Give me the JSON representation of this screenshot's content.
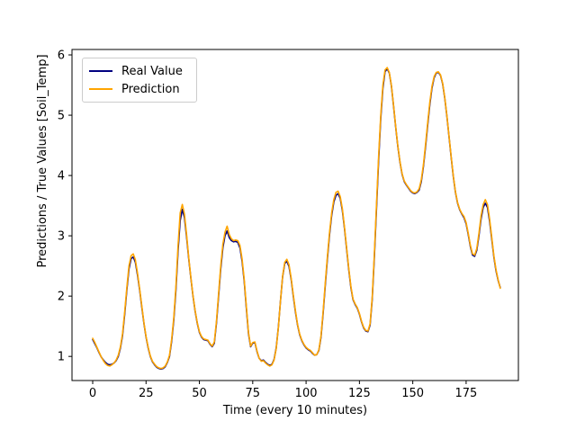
{
  "chart_data": {
    "type": "line",
    "title": "",
    "xlabel": "Time (every 10 minutes)",
    "ylabel": "Predictions / True Values [Soil_Temp]",
    "x_start": 0,
    "x_step": 1,
    "xticks": [
      0,
      25,
      50,
      75,
      100,
      125,
      150,
      175
    ],
    "yticks": [
      1,
      2,
      3,
      4,
      5,
      6
    ],
    "xlim": [
      -9.7,
      199.5
    ],
    "ylim": [
      0.6,
      6.09
    ],
    "grid": false,
    "background": "#ffffff",
    "axes_color": "#000000",
    "legend": {
      "position": "upper left"
    },
    "series": [
      {
        "name": "Real Value",
        "color": "#000080",
        "line_width": 1.6,
        "values": [
          1.28,
          1.21,
          1.14,
          1.06,
          0.99,
          0.94,
          0.9,
          0.87,
          0.86,
          0.87,
          0.89,
          0.93,
          1.0,
          1.14,
          1.35,
          1.7,
          2.1,
          2.45,
          2.62,
          2.65,
          2.56,
          2.35,
          2.1,
          1.82,
          1.55,
          1.32,
          1.14,
          1.0,
          0.91,
          0.86,
          0.82,
          0.8,
          0.79,
          0.8,
          0.83,
          0.9,
          1.0,
          1.25,
          1.6,
          2.1,
          2.75,
          3.25,
          3.44,
          3.3,
          2.98,
          2.62,
          2.3,
          2.0,
          1.75,
          1.55,
          1.4,
          1.32,
          1.28,
          1.27,
          1.26,
          1.2,
          1.16,
          1.22,
          1.55,
          2.0,
          2.45,
          2.8,
          3.0,
          3.08,
          2.97,
          2.92,
          2.9,
          2.91,
          2.89,
          2.8,
          2.58,
          2.25,
          1.8,
          1.38,
          1.16,
          1.22,
          1.23,
          1.08,
          0.97,
          0.93,
          0.94,
          0.9,
          0.87,
          0.85,
          0.87,
          0.95,
          1.14,
          1.48,
          1.92,
          2.32,
          2.54,
          2.58,
          2.49,
          2.28,
          2.0,
          1.74,
          1.52,
          1.36,
          1.26,
          1.19,
          1.14,
          1.11,
          1.09,
          1.05,
          1.02,
          1.03,
          1.1,
          1.32,
          1.72,
          2.18,
          2.62,
          3.02,
          3.34,
          3.56,
          3.67,
          3.7,
          3.62,
          3.42,
          3.12,
          2.78,
          2.44,
          2.14,
          1.94,
          1.86,
          1.8,
          1.7,
          1.57,
          1.47,
          1.42,
          1.41,
          1.52,
          1.95,
          2.65,
          3.45,
          4.25,
          4.95,
          5.45,
          5.72,
          5.77,
          5.7,
          5.48,
          5.15,
          4.8,
          4.48,
          4.22,
          4.02,
          3.9,
          3.84,
          3.79,
          3.74,
          3.71,
          3.7,
          3.72,
          3.76,
          3.9,
          4.15,
          4.48,
          4.84,
          5.18,
          5.45,
          5.62,
          5.7,
          5.71,
          5.66,
          5.52,
          5.28,
          4.98,
          4.64,
          4.3,
          3.98,
          3.72,
          3.54,
          3.43,
          3.36,
          3.3,
          3.2,
          3.02,
          2.82,
          2.68,
          2.66,
          2.76,
          3.0,
          3.28,
          3.47,
          3.54,
          3.47,
          3.24,
          2.95,
          2.65,
          2.42,
          2.26,
          2.14
        ]
      },
      {
        "name": "Prediction",
        "color": "#FFA500",
        "line_width": 1.6,
        "values": [
          1.3,
          1.23,
          1.15,
          1.07,
          0.99,
          0.93,
          0.88,
          0.85,
          0.84,
          0.86,
          0.89,
          0.94,
          1.02,
          1.16,
          1.38,
          1.74,
          2.14,
          2.5,
          2.67,
          2.7,
          2.6,
          2.38,
          2.12,
          1.84,
          1.56,
          1.33,
          1.15,
          1.01,
          0.92,
          0.87,
          0.83,
          0.81,
          0.8,
          0.81,
          0.84,
          0.91,
          1.02,
          1.28,
          1.64,
          2.16,
          2.84,
          3.38,
          3.52,
          3.36,
          3.02,
          2.64,
          2.31,
          2.01,
          1.76,
          1.56,
          1.41,
          1.33,
          1.29,
          1.28,
          1.27,
          1.21,
          1.17,
          1.24,
          1.58,
          2.04,
          2.5,
          2.86,
          3.06,
          3.16,
          3.02,
          2.95,
          2.92,
          2.93,
          2.92,
          2.84,
          2.62,
          2.28,
          1.83,
          1.4,
          1.17,
          1.23,
          1.24,
          1.09,
          0.97,
          0.92,
          0.93,
          0.89,
          0.86,
          0.84,
          0.86,
          0.94,
          1.13,
          1.47,
          1.92,
          2.33,
          2.56,
          2.61,
          2.52,
          2.3,
          2.02,
          1.76,
          1.53,
          1.37,
          1.27,
          1.2,
          1.15,
          1.12,
          1.1,
          1.06,
          1.02,
          1.03,
          1.11,
          1.34,
          1.75,
          2.22,
          2.66,
          3.06,
          3.38,
          3.6,
          3.72,
          3.74,
          3.65,
          3.45,
          3.14,
          2.8,
          2.46,
          2.16,
          1.95,
          1.87,
          1.81,
          1.71,
          1.58,
          1.48,
          1.43,
          1.42,
          1.54,
          1.98,
          2.7,
          3.52,
          4.32,
          5.0,
          5.5,
          5.75,
          5.79,
          5.71,
          5.49,
          5.16,
          4.81,
          4.49,
          4.23,
          4.03,
          3.91,
          3.85,
          3.8,
          3.75,
          3.72,
          3.71,
          3.73,
          3.78,
          3.93,
          4.18,
          4.52,
          4.88,
          5.22,
          5.48,
          5.64,
          5.71,
          5.72,
          5.67,
          5.53,
          5.29,
          4.99,
          4.65,
          4.31,
          3.99,
          3.73,
          3.55,
          3.44,
          3.37,
          3.32,
          3.22,
          3.04,
          2.84,
          2.7,
          2.68,
          2.79,
          3.04,
          3.33,
          3.52,
          3.6,
          3.52,
          3.28,
          2.98,
          2.67,
          2.44,
          2.27,
          2.13
        ]
      }
    ]
  }
}
